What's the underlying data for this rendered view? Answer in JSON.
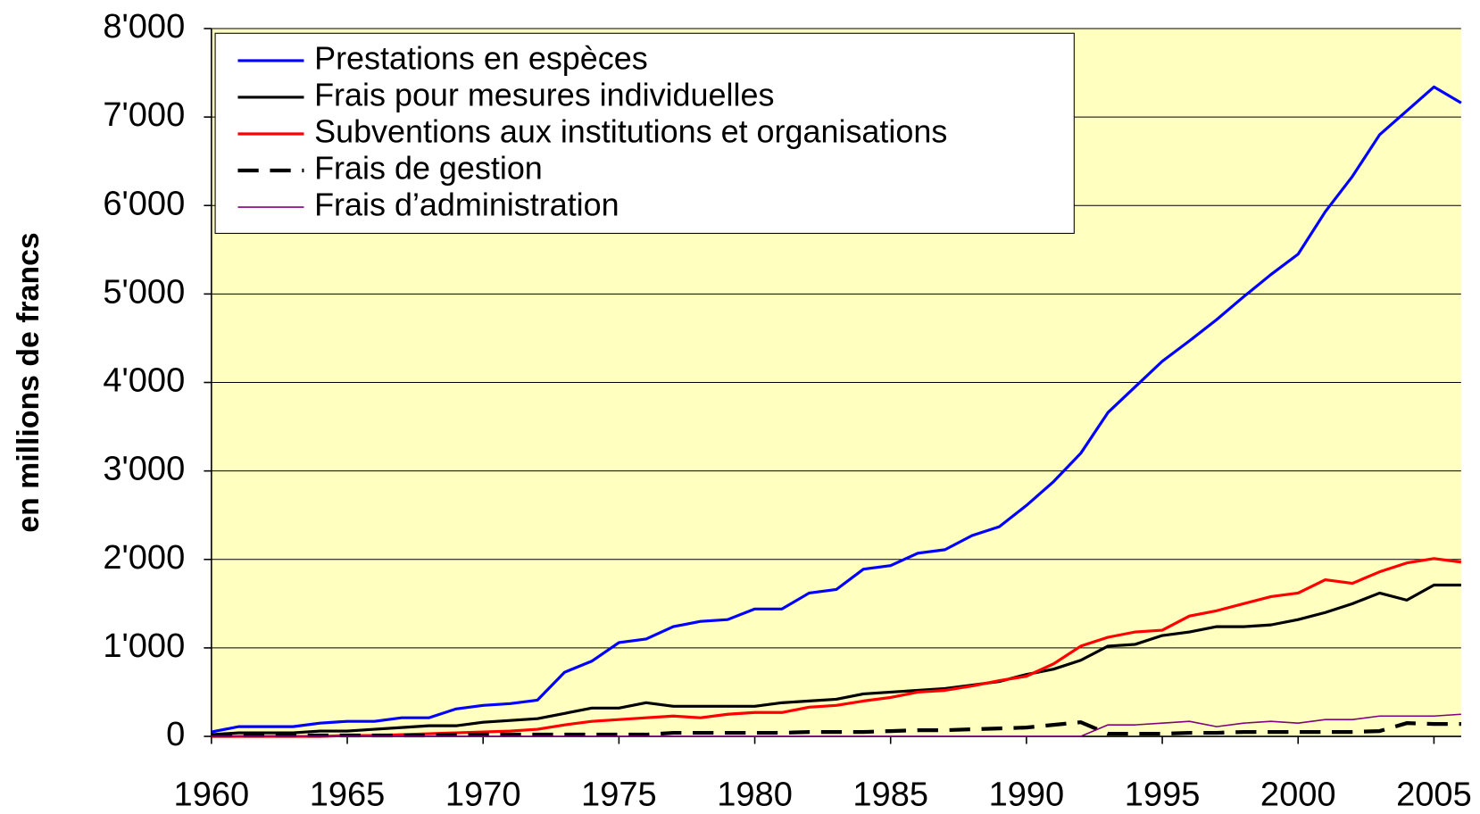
{
  "chart_data": {
    "type": "line",
    "y_label": "en millions de francs",
    "x": [
      1960,
      1961,
      1962,
      1963,
      1964,
      1965,
      1966,
      1967,
      1968,
      1969,
      1970,
      1971,
      1972,
      1973,
      1974,
      1975,
      1976,
      1977,
      1978,
      1979,
      1980,
      1981,
      1982,
      1983,
      1984,
      1985,
      1986,
      1987,
      1988,
      1989,
      1990,
      1991,
      1992,
      1993,
      1994,
      1995,
      1996,
      1997,
      1998,
      1999,
      2000,
      2001,
      2002,
      2003,
      2004,
      2005,
      2006
    ],
    "series": [
      {
        "name": "Prestations en espèces",
        "color": "#0000ff",
        "style": "solid",
        "values": [
          50,
          110,
          110,
          110,
          150,
          170,
          170,
          210,
          210,
          310,
          350,
          370,
          410,
          725,
          850,
          1060,
          1100,
          1240,
          1300,
          1320,
          1440,
          1440,
          1620,
          1660,
          1890,
          1930,
          2070,
          2110,
          2270,
          2370,
          2610,
          2880,
          3200,
          3660,
          3950,
          4240,
          4470,
          4710,
          4970,
          5220,
          5450,
          5930,
          6330,
          6800,
          7070,
          7340,
          7160
        ]
      },
      {
        "name": "Frais pour mesures individuelles",
        "color": "#000000",
        "style": "solid",
        "values": [
          20,
          40,
          40,
          40,
          60,
          60,
          80,
          100,
          120,
          120,
          160,
          180,
          200,
          260,
          320,
          320,
          380,
          340,
          340,
          340,
          340,
          380,
          400,
          420,
          480,
          500,
          520,
          540,
          580,
          620,
          700,
          760,
          860,
          1020,
          1040,
          1140,
          1180,
          1240,
          1240,
          1260,
          1320,
          1400,
          1500,
          1620,
          1540,
          1710,
          1710
        ]
      },
      {
        "name": "Subventions aux institutions et organisations",
        "color": "#ff0000",
        "style": "solid",
        "values": [
          0,
          0,
          0,
          0,
          0,
          10,
          10,
          20,
          30,
          40,
          50,
          60,
          80,
          130,
          170,
          190,
          210,
          230,
          210,
          250,
          270,
          270,
          330,
          350,
          400,
          440,
          500,
          520,
          570,
          630,
          680,
          820,
          1020,
          1120,
          1180,
          1200,
          1360,
          1420,
          1500,
          1580,
          1620,
          1770,
          1730,
          1860,
          1960,
          2010,
          1970
        ]
      },
      {
        "name": "Frais de gestion",
        "color": "#000000",
        "style": "dashed",
        "values": [
          10,
          10,
          10,
          10,
          10,
          10,
          10,
          10,
          10,
          20,
          20,
          20,
          20,
          20,
          20,
          20,
          20,
          40,
          40,
          40,
          40,
          40,
          50,
          50,
          50,
          60,
          70,
          70,
          80,
          90,
          100,
          130,
          160,
          30,
          30,
          30,
          40,
          40,
          50,
          50,
          50,
          50,
          50,
          60,
          150,
          140,
          140
        ]
      },
      {
        "name": "Frais d’administration",
        "color": "#800080",
        "style": "thin",
        "values": [
          0,
          0,
          0,
          0,
          0,
          0,
          0,
          0,
          0,
          0,
          0,
          0,
          0,
          0,
          0,
          0,
          0,
          0,
          0,
          0,
          0,
          0,
          0,
          0,
          0,
          0,
          0,
          0,
          0,
          0,
          0,
          0,
          0,
          130,
          130,
          150,
          170,
          110,
          150,
          170,
          150,
          190,
          190,
          230,
          230,
          230,
          250
        ]
      }
    ],
    "xlim": [
      1960,
      2006
    ],
    "xticks": [
      1960,
      1965,
      1970,
      1975,
      1980,
      1985,
      1990,
      1995,
      2000,
      2005
    ],
    "ylim": [
      0,
      8000
    ],
    "yticks": [
      {
        "value": 0,
        "label": "0"
      },
      {
        "value": 1000,
        "label": "1'000"
      },
      {
        "value": 2000,
        "label": "2'000"
      },
      {
        "value": 3000,
        "label": "3'000"
      },
      {
        "value": 4000,
        "label": "4'000"
      },
      {
        "value": 5000,
        "label": "5'000"
      },
      {
        "value": 6000,
        "label": "6'000"
      },
      {
        "value": 7000,
        "label": "7'000"
      },
      {
        "value": 8000,
        "label": "8'000"
      }
    ],
    "grid": true,
    "legend": "upper left",
    "background": "#ffffc0"
  }
}
